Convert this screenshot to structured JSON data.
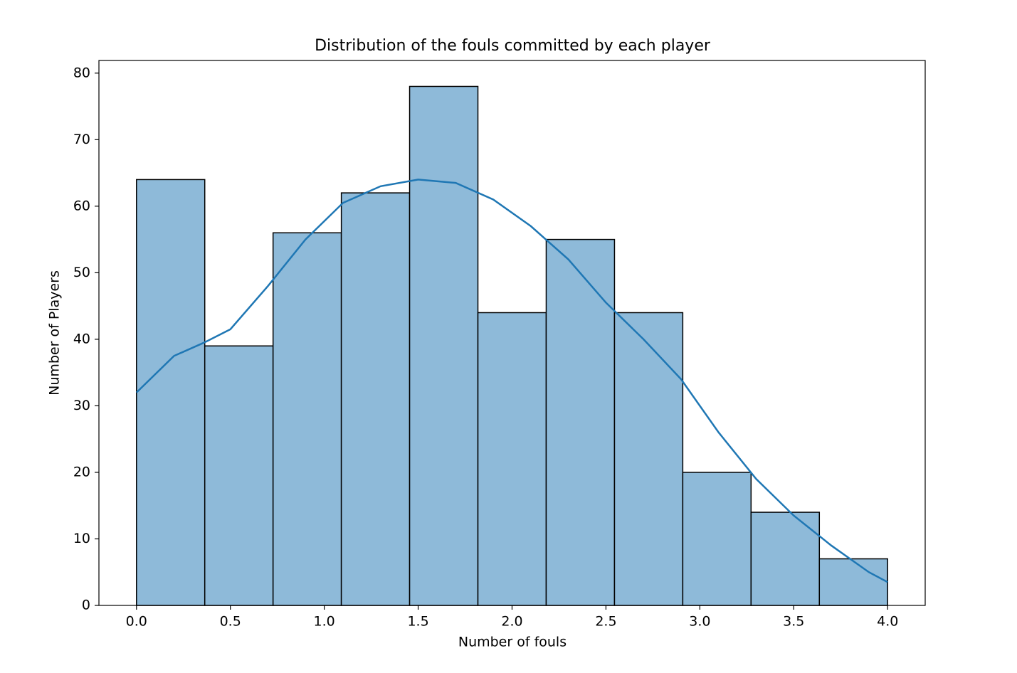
{
  "chart_data": {
    "type": "histogram",
    "title": "Distribution of the fouls committed by each player",
    "x_label": "Number of fouls",
    "y_label": "Number of Players",
    "bins": [
      0,
      0.3636,
      0.7273,
      1.0909,
      1.4545,
      1.8182,
      2.1818,
      2.5455,
      2.9091,
      3.2727,
      3.6364,
      4.0
    ],
    "counts": [
      64,
      39,
      56,
      62,
      78,
      44,
      55,
      44,
      20,
      14,
      7
    ],
    "color": "#8ebad9",
    "edge_color": "#000000",
    "kde": {
      "x": [
        0,
        0.2,
        0.36,
        0.5,
        0.7,
        0.9,
        1.1,
        1.3,
        1.5,
        1.7,
        1.9,
        2.1,
        2.3,
        2.5,
        2.7,
        2.9,
        3.1,
        3.3,
        3.5,
        3.7,
        3.9,
        4.0
      ],
      "values": [
        32,
        37.5,
        39.5,
        41.5,
        48,
        55,
        60.5,
        63,
        64,
        63.5,
        61,
        57,
        52,
        45.5,
        40,
        34,
        26,
        19,
        13.5,
        9,
        5,
        3.5
      ],
      "color": "#1f77b4"
    },
    "xlim": [
      -0.2,
      4.2
    ],
    "xticks": [
      {
        "value": 0,
        "label": "0.0"
      },
      {
        "value": 0.5,
        "label": "0.5"
      },
      {
        "value": 1,
        "label": "1.0"
      },
      {
        "value": 1.5,
        "label": "1.5"
      },
      {
        "value": 2,
        "label": "2.0"
      },
      {
        "value": 2.5,
        "label": "2.5"
      },
      {
        "value": 3,
        "label": "3.0"
      },
      {
        "value": 3.5,
        "label": "3.5"
      },
      {
        "value": 4,
        "label": "4.0"
      }
    ],
    "ylim": [
      0,
      81.9
    ],
    "yticks": [
      0,
      10,
      20,
      30,
      40,
      50,
      60,
      70,
      80
    ]
  }
}
